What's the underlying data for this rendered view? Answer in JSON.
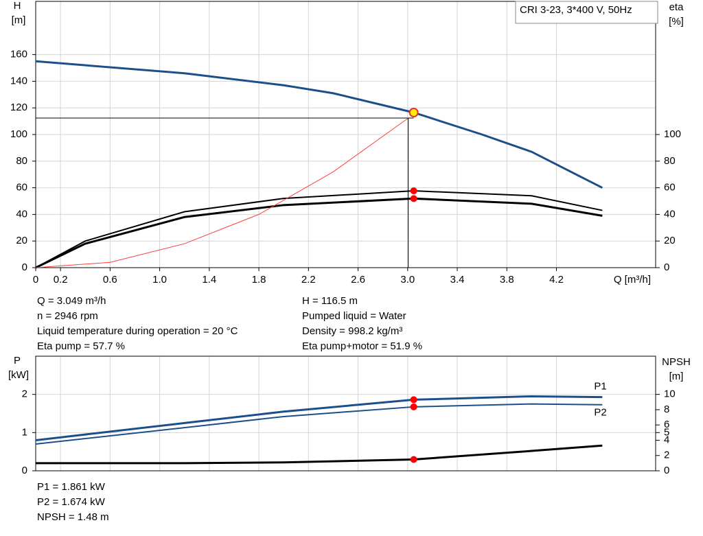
{
  "chart_data": [
    {
      "type": "line",
      "subtitle": "CRI 3-23, 3*400 V, 50Hz",
      "ylabel": [
        "H",
        "[m]"
      ],
      "y2label": [
        "eta",
        "[%]"
      ],
      "xlabel": "Q [m³/h]",
      "xlim": [
        0,
        5.0
      ],
      "ylim": [
        0,
        200
      ],
      "y2lim": [
        0,
        200
      ],
      "xticks": [
        0,
        0.2,
        0.6,
        {
          "value": 1,
          "label": "1.0"
        },
        1.4,
        1.8,
        2.2,
        2.6,
        {
          "value": 3,
          "label": "3.0"
        },
        3.4,
        3.8,
        4.2
      ],
      "yticks": [
        0,
        20,
        40,
        60,
        80,
        100,
        120,
        140,
        160
      ],
      "y2ticks": [
        0,
        20,
        40,
        60,
        80,
        100
      ],
      "grid": true,
      "series": [
        {
          "color": "#1b4f8a",
          "width": 3,
          "x": [
            0,
            1.2,
            2.0,
            2.4,
            3.049,
            3.6,
            4.0,
            4.57
          ],
          "values": [
            155,
            146,
            137,
            131,
            116.5,
            100,
            87,
            60
          ]
        },
        {
          "color": "#000000",
          "width": 2,
          "axis": "y2",
          "x": [
            0,
            0.4,
            1.2,
            2.0,
            3.049,
            4.0,
            4.57
          ],
          "values": [
            0,
            20,
            42,
            52,
            57.7,
            54,
            43
          ]
        },
        {
          "color": "#000000",
          "width": 3,
          "axis": "y2",
          "x": [
            0,
            0.4,
            1.2,
            2.0,
            3.049,
            4.0,
            4.57
          ],
          "values": [
            0,
            18,
            38,
            47,
            51.9,
            48,
            39
          ]
        },
        {
          "color": "#ff3b3b",
          "width": 1,
          "x": [
            0,
            0.6,
            1.2,
            1.8,
            2.4,
            3.0
          ],
          "values": [
            0,
            4,
            18,
            40,
            72,
            112
          ]
        }
      ],
      "points": [
        {
          "x": 3.049,
          "y": 116.5,
          "color": "#ffee00"
        },
        {
          "x": 3.049,
          "y": 57.7,
          "axis": "y2",
          "color": "#ff0000"
        },
        {
          "x": 3.049,
          "y": 51.9,
          "axis": "y2",
          "color": "#ff0000"
        }
      ]
    },
    {
      "type": "line",
      "ylabel": [
        "P",
        "[kW]"
      ],
      "y2label": [
        "NPSH",
        "[m]"
      ],
      "xlim": [
        0,
        5.0
      ],
      "ylim": [
        0,
        3
      ],
      "y2lim": [
        0,
        15
      ],
      "yticks": [
        0,
        1,
        2
      ],
      "y2ticks": [
        0,
        2,
        4,
        5,
        6,
        8,
        10
      ],
      "grid": true,
      "series": [
        {
          "name": "P1",
          "color": "#1b4f8a",
          "width": 3,
          "x": [
            0,
            1.2,
            2.0,
            3.049,
            4.0,
            4.57
          ],
          "values": [
            0.8,
            1.25,
            1.55,
            1.861,
            1.95,
            1.93
          ]
        },
        {
          "name": "P2",
          "color": "#1b4f8a",
          "width": 2,
          "x": [
            0,
            1.2,
            2.0,
            3.049,
            4.0,
            4.57
          ],
          "values": [
            0.7,
            1.13,
            1.42,
            1.674,
            1.75,
            1.73
          ]
        },
        {
          "color": "#000000",
          "width": 3,
          "axis": "y2",
          "x": [
            0,
            1.2,
            2.0,
            3.049,
            4.0,
            4.57
          ],
          "values": [
            1.0,
            1.0,
            1.1,
            1.48,
            2.6,
            3.3
          ]
        }
      ],
      "points": [
        {
          "x": 3.049,
          "y": 1.861,
          "color": "#ff0000"
        },
        {
          "x": 3.049,
          "y": 1.674,
          "color": "#ff0000"
        },
        {
          "x": 3.049,
          "y": 1.48,
          "axis": "y2",
          "color": "#ff0000"
        }
      ]
    }
  ],
  "info": {
    "left": [
      "Q = 3.049 m³/h",
      "n = 2946 rpm",
      "Liquid temperature during operation = 20 °C",
      "Eta pump = 57.7 %"
    ],
    "right": [
      "H = 116.5 m",
      "Pumped liquid = Water",
      "Density = 998.2 kg/m³",
      "Eta pump+motor = 51.9 %"
    ],
    "bottom": [
      "P1 = 1.861 kW",
      "P2 = 1.674 kW",
      "NPSH = 1.48 m"
    ]
  }
}
